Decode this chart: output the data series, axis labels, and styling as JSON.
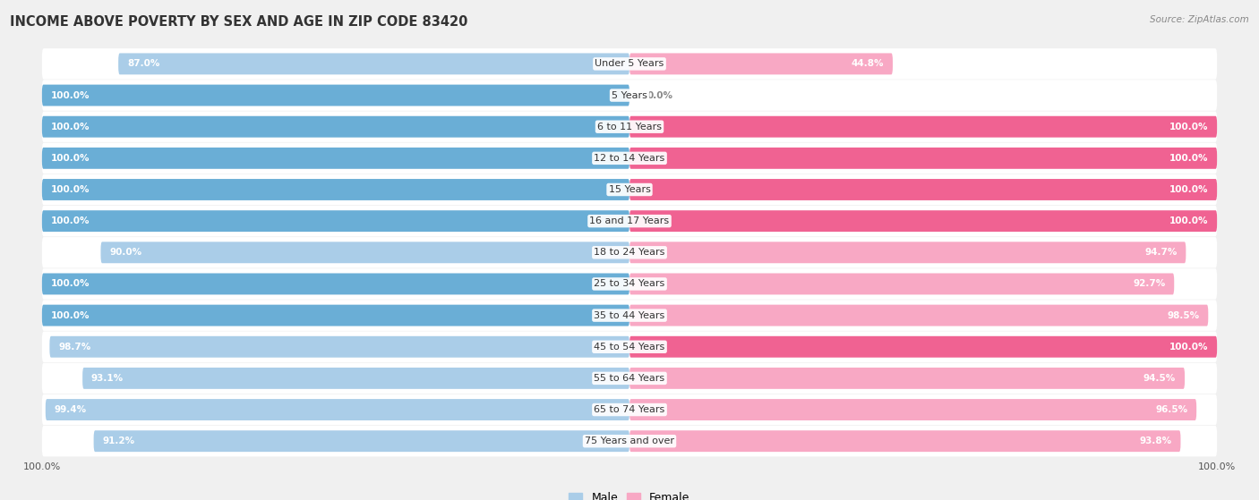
{
  "title": "INCOME ABOVE POVERTY BY SEX AND AGE IN ZIP CODE 83420",
  "source": "Source: ZipAtlas.com",
  "categories": [
    "Under 5 Years",
    "5 Years",
    "6 to 11 Years",
    "12 to 14 Years",
    "15 Years",
    "16 and 17 Years",
    "18 to 24 Years",
    "25 to 34 Years",
    "35 to 44 Years",
    "45 to 54 Years",
    "55 to 64 Years",
    "65 to 74 Years",
    "75 Years and over"
  ],
  "male_values": [
    87.0,
    100.0,
    100.0,
    100.0,
    100.0,
    100.0,
    90.0,
    100.0,
    100.0,
    98.7,
    93.1,
    99.4,
    91.2
  ],
  "female_values": [
    44.8,
    0.0,
    100.0,
    100.0,
    100.0,
    100.0,
    94.7,
    92.7,
    98.5,
    100.0,
    94.5,
    96.5,
    93.8
  ],
  "male_color_full": "#6aaed6",
  "male_color_partial": "#aacde8",
  "female_color_full": "#f06292",
  "female_color_partial": "#f8a8c4",
  "background_color": "#f0f0f0",
  "row_bg_color": "#ffffff",
  "bar_height": 0.68,
  "legend_male": "Male",
  "legend_female": "Female",
  "title_fontsize": 10.5,
  "source_fontsize": 7.5,
  "label_fontsize": 8.0,
  "value_fontsize": 7.5,
  "bottom_tick_label": "100.0%"
}
